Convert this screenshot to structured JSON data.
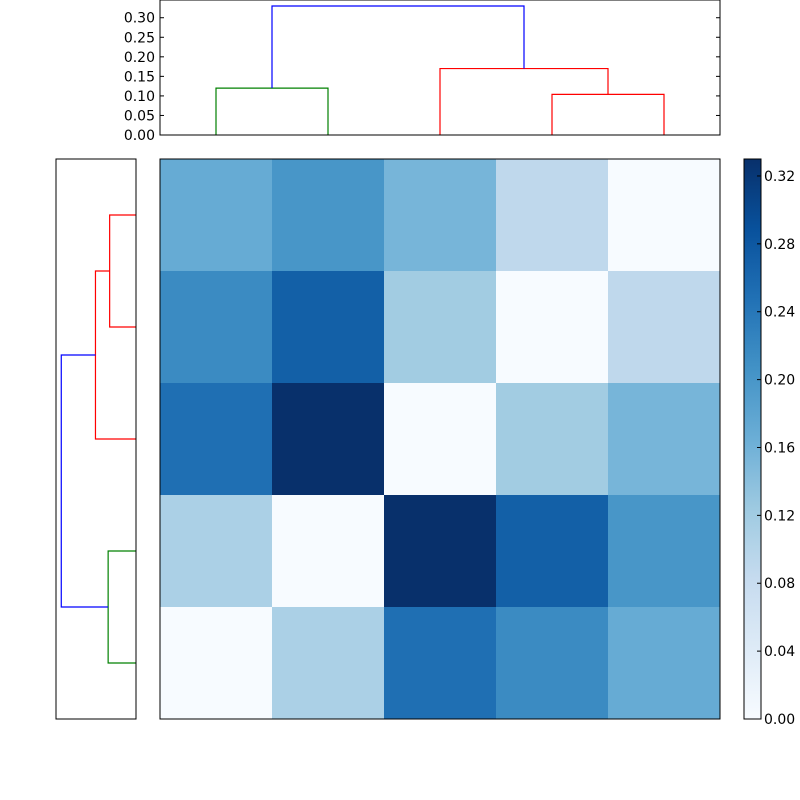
{
  "chart_data": [
    {
      "type": "dendrogram",
      "orientation": "top",
      "ylim": [
        0,
        0.33
      ],
      "ticks": [
        {
          "value": 0.0,
          "label": "0.00"
        },
        {
          "value": 0.05,
          "label": "0.05"
        },
        {
          "value": 0.1,
          "label": "0.10"
        },
        {
          "value": 0.15,
          "label": "0.15"
        },
        {
          "value": 0.2,
          "label": "0.20"
        },
        {
          "value": 0.25,
          "label": "0.25"
        },
        {
          "value": 0.3,
          "label": "0.30"
        }
      ],
      "leaves": 5,
      "links": [
        {
          "left": 0,
          "right": 1,
          "height": 0.12,
          "color": "#008000"
        },
        {
          "left": 3,
          "right": 4,
          "height": 0.104,
          "color": "#ff0000"
        },
        {
          "left": 2,
          "right": 3.5,
          "height": 0.17,
          "color": "#ff0000"
        },
        {
          "left": 0.5,
          "right": 2.75,
          "height": 0.33,
          "color": "#0000ff"
        }
      ]
    },
    {
      "type": "dendrogram",
      "orientation": "left",
      "leaves": 5,
      "links": [
        {
          "left": 0,
          "right": 1,
          "height": 0.104,
          "color": "#ff0000"
        },
        {
          "left": 0.5,
          "right": 2,
          "height": 0.16,
          "color": "#ff0000"
        },
        {
          "left": 3,
          "right": 4,
          "height": 0.11,
          "color": "#008000"
        },
        {
          "left": 1.25,
          "right": 3.5,
          "height": 0.295,
          "color": "#0000ff"
        }
      ]
    },
    {
      "type": "heatmap",
      "colormap": "Blues",
      "vmin": 0,
      "vmax": 0.33,
      "rows": 5,
      "cols": 5,
      "values": [
        [
          0.17,
          0.2,
          0.155,
          0.09,
          0.0
        ],
        [
          0.215,
          0.27,
          0.12,
          0.0,
          0.09
        ],
        [
          0.25,
          0.33,
          0.0,
          0.12,
          0.155
        ],
        [
          0.11,
          0.0,
          0.33,
          0.27,
          0.2
        ],
        [
          0.0,
          0.11,
          0.25,
          0.215,
          0.17
        ]
      ]
    },
    {
      "type": "colorbar",
      "colormap": "Blues",
      "vmin": 0,
      "vmax": 0.33,
      "ticks": [
        {
          "value": 0.0,
          "label": "0.00"
        },
        {
          "value": 0.04,
          "label": "0.04"
        },
        {
          "value": 0.08,
          "label": "0.08"
        },
        {
          "value": 0.12,
          "label": "0.12"
        },
        {
          "value": 0.16,
          "label": "0.16"
        },
        {
          "value": 0.2,
          "label": "0.20"
        },
        {
          "value": 0.24,
          "label": "0.24"
        },
        {
          "value": 0.28,
          "label": "0.28"
        },
        {
          "value": 0.32,
          "label": "0.32"
        }
      ]
    }
  ]
}
